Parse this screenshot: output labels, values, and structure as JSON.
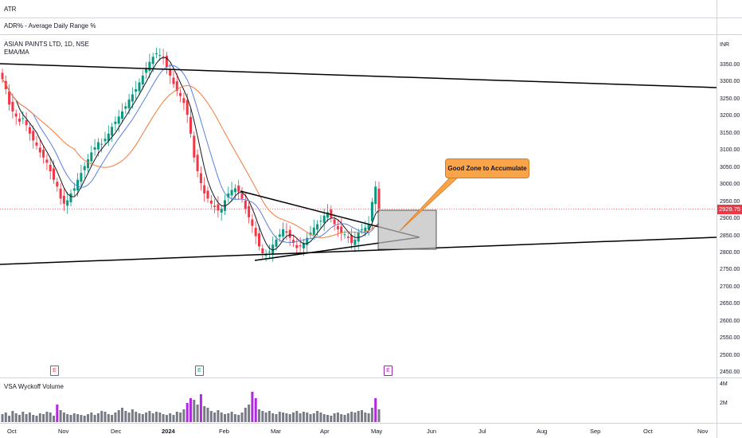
{
  "indicators": {
    "atr": "ATR",
    "adr": "ADR% - Average Daily Range %",
    "symbol": "ASIAN PAINTS LTD, 1D, NSE",
    "ma": "EMA/MA",
    "volume": "VSA Wyckoff Volume"
  },
  "axis": {
    "currency": "INR",
    "prices": [
      "3350.00",
      "3300.00",
      "3250.00",
      "3200.00",
      "3150.00",
      "3100.00",
      "3050.00",
      "3000.00",
      "2950.00",
      "2900.00",
      "2850.00",
      "2800.00",
      "2750.00",
      "2700.00",
      "2650.00",
      "2600.00",
      "2550.00",
      "2500.00",
      "2450.00"
    ],
    "last_price": "2929.75",
    "volume_ticks": [
      "4M",
      "2M"
    ],
    "months": [
      "Oct",
      "Nov",
      "Dec",
      "2024",
      "Feb",
      "Mar",
      "Apr",
      "May",
      "Jun",
      "Jul",
      "Aug",
      "Sep",
      "Oct",
      "Nov"
    ]
  },
  "annotation": {
    "text": "Good Zone to Accumulate"
  },
  "events": [
    {
      "glyph": "E",
      "color": "#f23645"
    },
    {
      "glyph": "E",
      "color": "#089981"
    },
    {
      "glyph": "E",
      "color": "#9c27b0"
    }
  ],
  "colors": {
    "up": "#089981",
    "down": "#f23645",
    "ema_fast": "#131722",
    "ema_mid": "#5b7fe0",
    "ema_slow": "#f4793b",
    "vol_gray": "#787b86",
    "vol_purple": "#b028e0",
    "vol_pink": "#e040a0"
  },
  "chart_data": {
    "type": "candlestick",
    "series_closes": [
      3310,
      3280,
      3235,
      3215,
      3200,
      3185,
      3195,
      3175,
      3150,
      3130,
      3115,
      3095,
      3080,
      3065,
      3040,
      3015,
      2995,
      2960,
      2945,
      2955,
      2975,
      2990,
      3015,
      3035,
      3055,
      3075,
      3095,
      3110,
      3125,
      3120,
      3135,
      3150,
      3170,
      3185,
      3200,
      3215,
      3230,
      3250,
      3265,
      3280,
      3300,
      3320,
      3340,
      3360,
      3375,
      3385,
      3380,
      3370,
      3345,
      3320,
      3295,
      3275,
      3260,
      3240,
      3205,
      3150,
      3080,
      3040,
      3005,
      2975,
      2960,
      2945,
      2935,
      2925,
      2930,
      2955,
      2975,
      2985,
      2990,
      2980,
      2960,
      2930,
      2905,
      2880,
      2850,
      2820,
      2800,
      2795,
      2805,
      2825,
      2840,
      2855,
      2870,
      2860,
      2845,
      2830,
      2815,
      2820,
      2830,
      2845,
      2860,
      2875,
      2885,
      2895,
      2910,
      2920,
      2905,
      2885,
      2870,
      2860,
      2855,
      2845,
      2830,
      2840,
      2860,
      2870,
      2875,
      2885,
      2950,
      2995,
      2930
    ]
  }
}
